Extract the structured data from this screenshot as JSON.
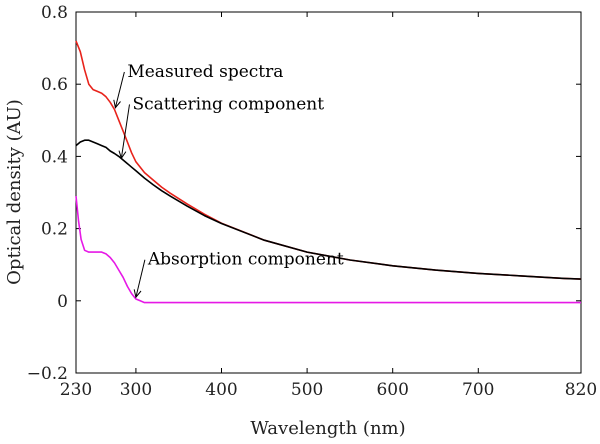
{
  "chart_data": {
    "type": "line",
    "title": "",
    "xlabel": "Wavelength (nm)",
    "ylabel": "Optical density (AU)",
    "xlim": [
      230,
      820
    ],
    "ylim": [
      -0.2,
      0.8
    ],
    "xticks": [
      "230",
      "300",
      "400",
      "500",
      "600",
      "700",
      "820"
    ],
    "yticks": [
      "−0.2",
      "0",
      "0.2",
      "0.4",
      "0.6",
      "0.8"
    ],
    "grid": false,
    "legend": "none",
    "series": [
      {
        "color": "#e8231b",
        "x": [
          230,
          235,
          240,
          245,
          250,
          255,
          260,
          265,
          270,
          275,
          280,
          285,
          290,
          295,
          300,
          310,
          320,
          330,
          340,
          360,
          380,
          400,
          450,
          500,
          550,
          600,
          650,
          700,
          750,
          800,
          820
        ],
        "y": [
          0.72,
          0.69,
          0.64,
          0.6,
          0.585,
          0.58,
          0.575,
          0.565,
          0.55,
          0.53,
          0.5,
          0.47,
          0.44,
          0.41,
          0.385,
          0.355,
          0.335,
          0.315,
          0.298,
          0.268,
          0.24,
          0.215,
          0.168,
          0.135,
          0.113,
          0.097,
          0.085,
          0.076,
          0.069,
          0.062,
          0.06
        ]
      },
      {
        "color": "#000000",
        "x": [
          230,
          235,
          240,
          245,
          250,
          255,
          260,
          265,
          270,
          275,
          280,
          285,
          290,
          295,
          300,
          310,
          320,
          330,
          340,
          360,
          380,
          400,
          450,
          500,
          550,
          600,
          650,
          700,
          750,
          800,
          820
        ],
        "y": [
          0.43,
          0.44,
          0.445,
          0.445,
          0.44,
          0.435,
          0.43,
          0.425,
          0.415,
          0.408,
          0.4,
          0.39,
          0.38,
          0.37,
          0.36,
          0.34,
          0.322,
          0.305,
          0.29,
          0.262,
          0.236,
          0.214,
          0.168,
          0.135,
          0.113,
          0.097,
          0.085,
          0.076,
          0.069,
          0.062,
          0.06
        ]
      },
      {
        "color": "#e619e6",
        "x": [
          230,
          233,
          236,
          240,
          245,
          250,
          255,
          260,
          265,
          270,
          275,
          280,
          285,
          290,
          295,
          300,
          305,
          310,
          320,
          330,
          340,
          360,
          400,
          450,
          500,
          550,
          600,
          650,
          700,
          750,
          800,
          820
        ],
        "y": [
          0.29,
          0.22,
          0.17,
          0.14,
          0.135,
          0.135,
          0.135,
          0.135,
          0.13,
          0.12,
          0.105,
          0.085,
          0.065,
          0.04,
          0.02,
          0.005,
          0.0,
          -0.005,
          -0.005,
          -0.005,
          -0.005,
          -0.005,
          -0.005,
          -0.005,
          -0.005,
          -0.005,
          -0.005,
          -0.005,
          -0.005,
          -0.005,
          -0.005,
          -0.005
        ]
      }
    ],
    "annotations": [
      {
        "text": "Measured spectra",
        "x": 290,
        "y": 0.62,
        "arrow_to": [
          276,
          0.535
        ]
      },
      {
        "text": "Scattering component",
        "x": 296,
        "y": 0.53,
        "arrow_to": [
          283,
          0.395
        ]
      },
      {
        "text": "Absorption component",
        "x": 314,
        "y": 0.1,
        "arrow_to": [
          300,
          0.01
        ]
      }
    ]
  }
}
